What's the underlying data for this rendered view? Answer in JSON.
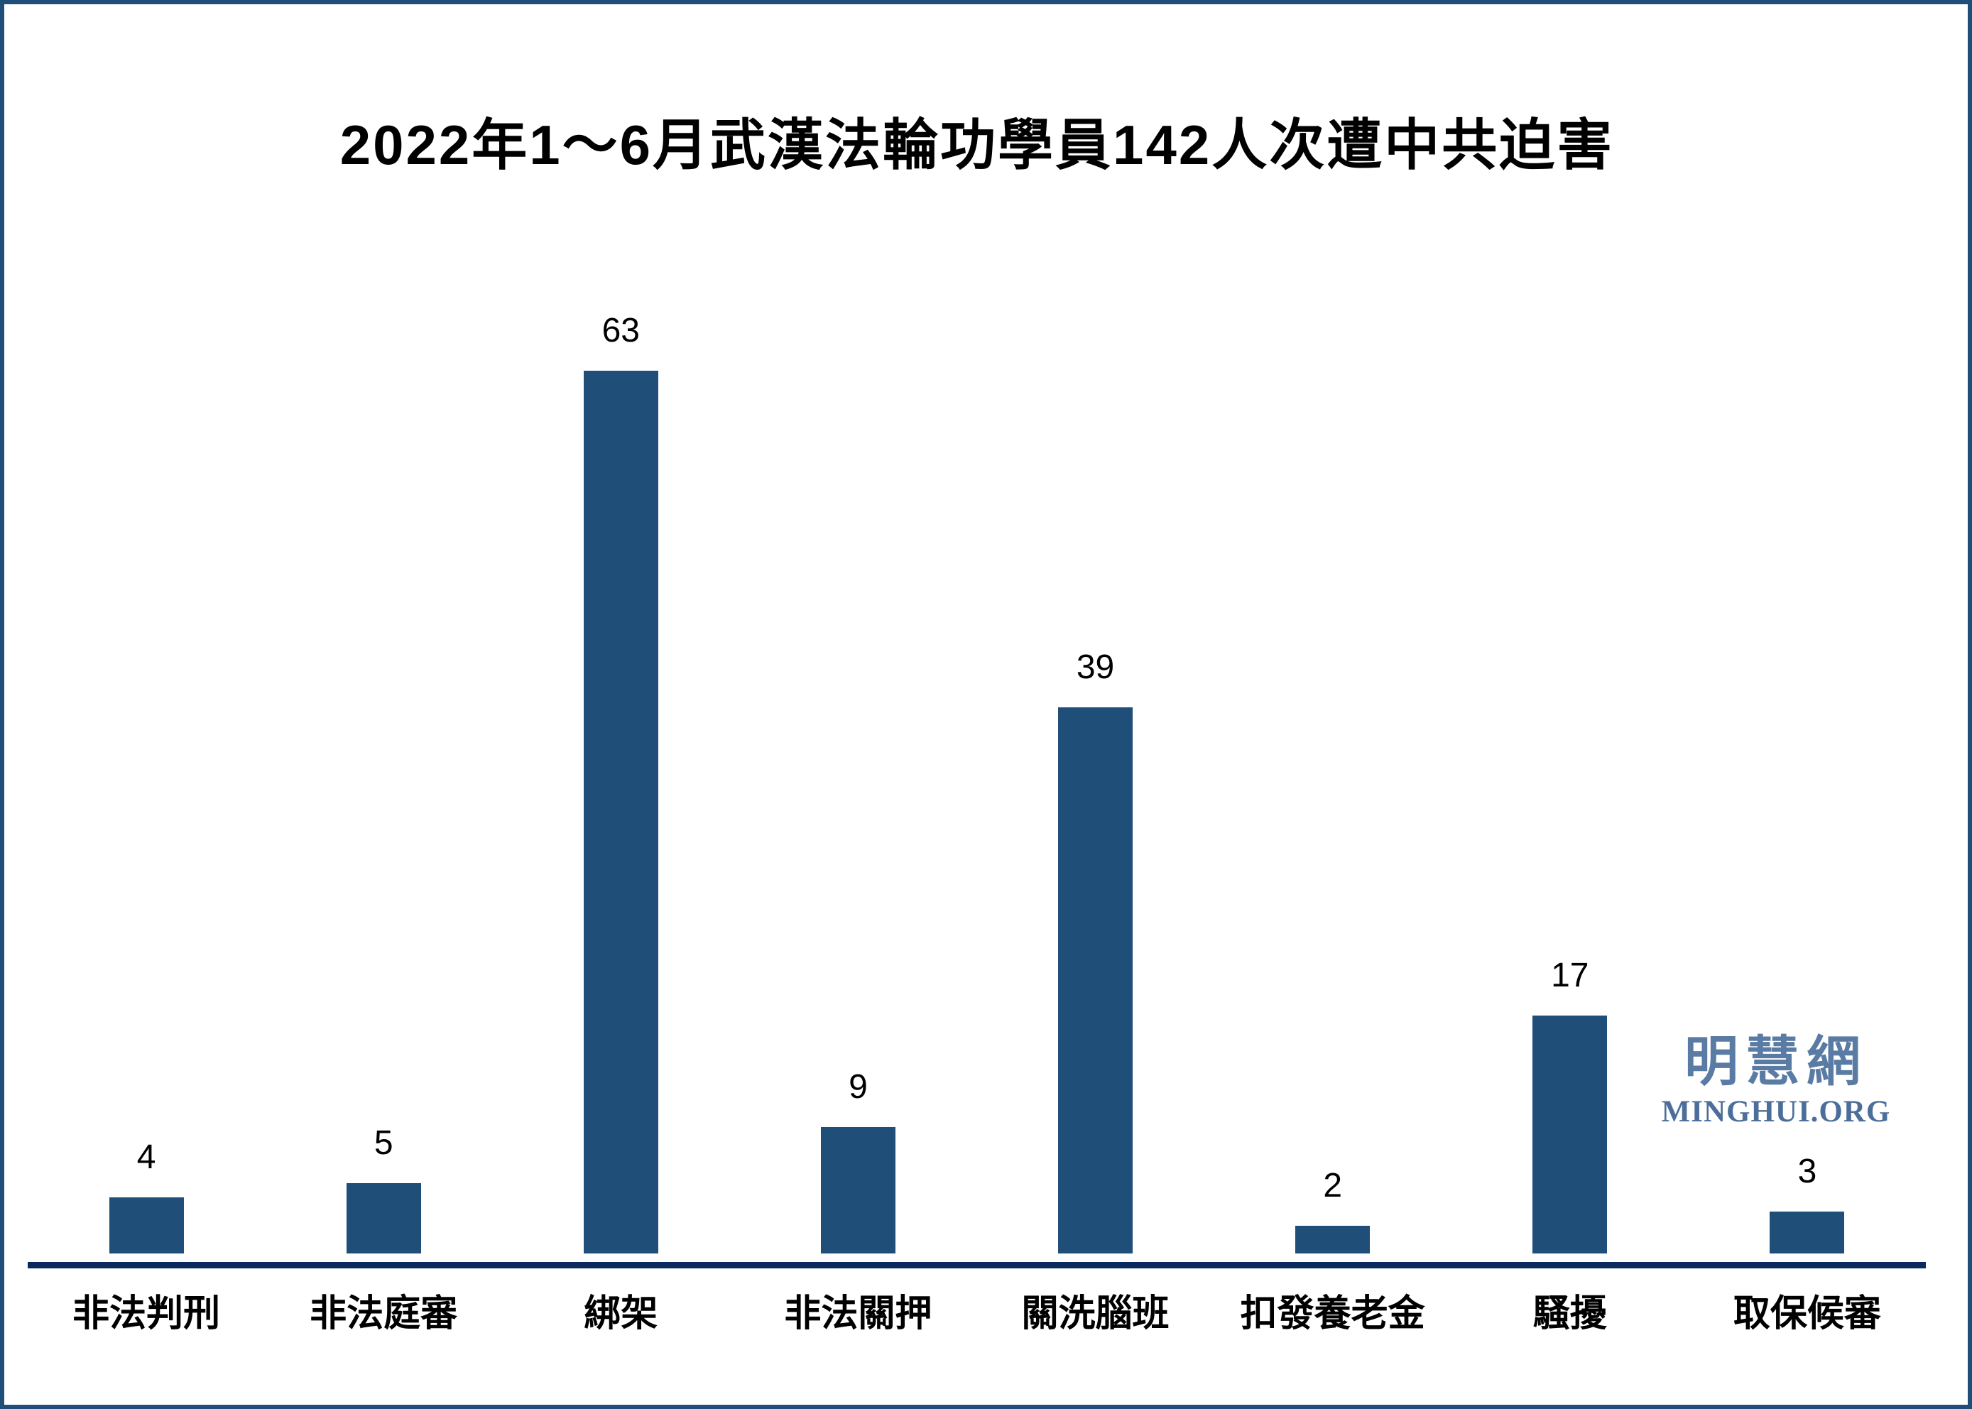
{
  "page": {
    "background": "#ffffff",
    "border_color": "#1F4E79"
  },
  "chart_data": {
    "type": "bar",
    "title": "2022年1～6月武漢法輪功學員142人次遭中共迫害",
    "categories": [
      "非法判刑",
      "非法庭審",
      "綁架",
      "非法關押",
      "關洗腦班",
      "扣發養老金",
      "騷擾",
      "取保候審"
    ],
    "values": [
      4,
      5,
      63,
      9,
      39,
      2,
      17,
      3
    ],
    "total": 142,
    "xlabel": "",
    "ylabel": "",
    "ylim": [
      0,
      63
    ],
    "y_axis": "hidden",
    "grid": "off",
    "legend": "none",
    "value_labels_shown": true,
    "bar_color": "#1F4E79",
    "baseline_color": "#0A2A5E",
    "value_label_color": "#000000",
    "category_label_color": "#000000"
  },
  "watermark": {
    "cjk": "明慧網",
    "latin": "MINGHUI.ORG",
    "cjk_color": "#5A7CA4",
    "latin_color": "#4C6E9B"
  }
}
